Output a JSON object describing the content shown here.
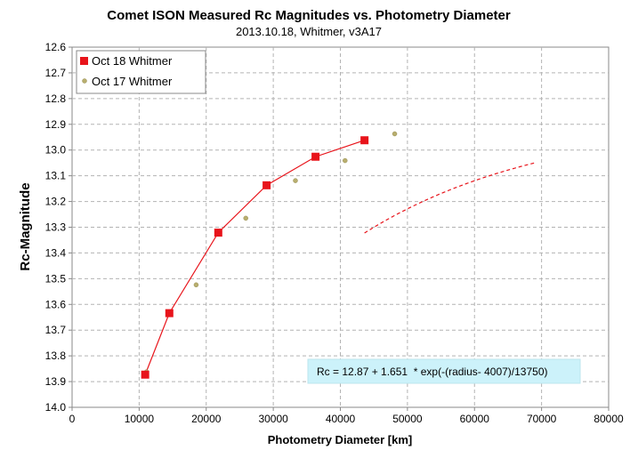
{
  "chart_data": {
    "type": "scatter",
    "title": "Comet ISON Measured Rc Magnitudes vs. Photometry Diameter",
    "subtitle": "2013.10.18,  Whitmer, v3A17",
    "xlabel": "Photometry Diameter  [km]",
    "ylabel": "Rc-Magnitude",
    "xlim": [
      0,
      80000
    ],
    "ylim": [
      12.6,
      14.0
    ],
    "y_inverted": true,
    "grid": true,
    "legend_position": "top-left",
    "x_ticks": [
      "0",
      "10000",
      "20000",
      "30000",
      "40000",
      "50000",
      "60000",
      "70000",
      "80000"
    ],
    "y_ticks": [
      "12.6",
      "12.7",
      "12.8",
      "12.9",
      "13.0",
      "13.1",
      "13.2",
      "13.3",
      "13.4",
      "13.5",
      "13.6",
      "13.7",
      "13.8",
      "13.9",
      "14.0"
    ],
    "series": [
      {
        "name": "Oct 18 Whitmer",
        "color": "#e8141b",
        "marker": "square",
        "line": true,
        "x": [
          10900,
          14500,
          21800,
          29000,
          36300,
          43600
        ],
        "y": [
          13.873,
          13.634,
          13.321,
          13.137,
          13.026,
          12.962
        ]
      },
      {
        "name": "Oct 17 Whitmer",
        "color": "#b8ae6e",
        "marker": "circle",
        "line": false,
        "x": [
          11100,
          18500,
          25900,
          33300,
          40700,
          48100
        ],
        "y": [
          13.862,
          13.524,
          13.265,
          13.119,
          13.041,
          12.937
        ]
      }
    ],
    "fit": {
      "color": "#e8141b",
      "style": "dashed",
      "a": 12.87,
      "b": 1.651,
      "r0": 4007,
      "scale": 13750,
      "x_range": [
        43600,
        69000
      ]
    },
    "annotation": "Rc = 12.87 + 1.651  * exp(-(radius- 4007)/13750)"
  }
}
